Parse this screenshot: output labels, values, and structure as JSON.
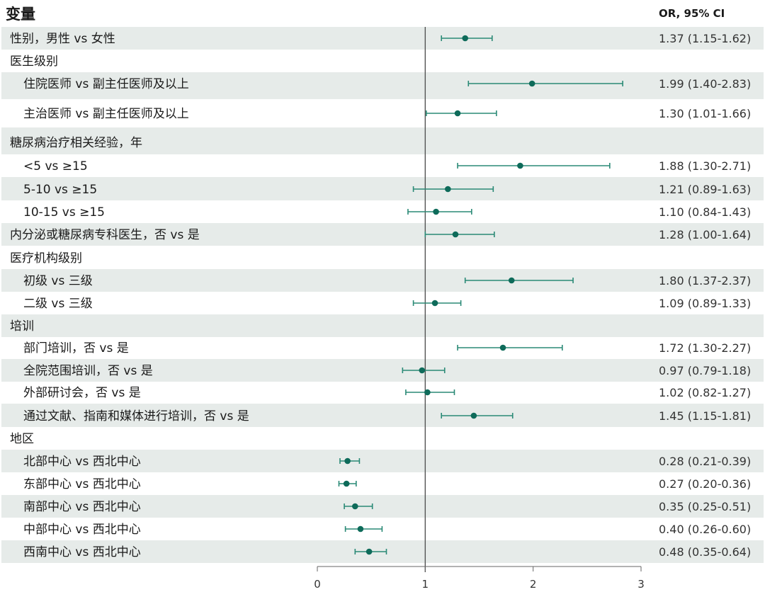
{
  "header": {
    "variable": "变量",
    "or_ci": "OR, 95% CI"
  },
  "chart_data": {
    "type": "forest",
    "xlim": [
      0,
      3
    ],
    "x_ticks": [
      0,
      1,
      2,
      3
    ],
    "x_tick_labels": [
      "0",
      "1",
      "2",
      "3"
    ],
    "reference_line": 1,
    "point_color": "#0e6b5a",
    "ci_color": "#2a8a76",
    "band_color": "#e6ebe9",
    "rows": [
      {
        "label": "性别，男性 vs 女性",
        "indent": 0,
        "or": 1.37,
        "lo": 1.15,
        "hi": 1.62,
        "text": "1.37 (1.15-1.62)"
      },
      {
        "label": "医生级别",
        "indent": 0,
        "header": true
      },
      {
        "label": "住院医师 vs 副主任医师及以上",
        "indent": 1,
        "or": 1.99,
        "lo": 1.4,
        "hi": 2.83,
        "text": "1.99 (1.40-2.83)"
      },
      {
        "label": "主治医师 vs 副主任医师及以上",
        "indent": 1,
        "or": 1.3,
        "lo": 1.01,
        "hi": 1.66,
        "text": "1.30 (1.01-1.66)"
      },
      {
        "label": "糖尿病治疗相关经验，年",
        "indent": 0,
        "header": true
      },
      {
        "label": "<5 vs ≥15",
        "indent": 1,
        "or": 1.88,
        "lo": 1.3,
        "hi": 2.71,
        "text": "1.88 (1.30-2.71)"
      },
      {
        "label": "5-10 vs ≥15",
        "indent": 1,
        "or": 1.21,
        "lo": 0.89,
        "hi": 1.63,
        "text": "1.21 (0.89-1.63)"
      },
      {
        "label": "10-15 vs ≥15",
        "indent": 1,
        "or": 1.1,
        "lo": 0.84,
        "hi": 1.43,
        "text": "1.10 (0.84-1.43)"
      },
      {
        "label": "内分泌或糖尿病专科医生，否 vs 是",
        "indent": 0,
        "or": 1.28,
        "lo": 1.0,
        "hi": 1.64,
        "text": "1.28 (1.00-1.64)"
      },
      {
        "label": "医疗机构级别",
        "indent": 0,
        "header": true
      },
      {
        "label": "初级 vs 三级",
        "indent": 1,
        "or": 1.8,
        "lo": 1.37,
        "hi": 2.37,
        "text": "1.80 (1.37-2.37)"
      },
      {
        "label": "二级 vs 三级",
        "indent": 1,
        "or": 1.09,
        "lo": 0.89,
        "hi": 1.33,
        "text": "1.09 (0.89-1.33)"
      },
      {
        "label": "培训",
        "indent": 0,
        "header": true
      },
      {
        "label": "部门培训，否 vs 是",
        "indent": 1,
        "or": 1.72,
        "lo": 1.3,
        "hi": 2.27,
        "text": "1.72 (1.30-2.27)"
      },
      {
        "label": "全院范围培训，否 vs 是",
        "indent": 1,
        "or": 0.97,
        "lo": 0.79,
        "hi": 1.18,
        "text": "0.97 (0.79-1.18)"
      },
      {
        "label": "外部研讨会，否 vs 是",
        "indent": 1,
        "or": 1.02,
        "lo": 0.82,
        "hi": 1.27,
        "text": "1.02 (0.82-1.27)"
      },
      {
        "label": "通过文献、指南和媒体进行培训，否 vs 是",
        "indent": 1,
        "or": 1.45,
        "lo": 1.15,
        "hi": 1.81,
        "text": "1.45 (1.15-1.81)"
      },
      {
        "label": "地区",
        "indent": 0,
        "header": true
      },
      {
        "label": "北部中心 vs 西北中心",
        "indent": 1,
        "or": 0.28,
        "lo": 0.21,
        "hi": 0.39,
        "text": "0.28 (0.21-0.39)"
      },
      {
        "label": "东部中心 vs 西北中心",
        "indent": 1,
        "or": 0.27,
        "lo": 0.2,
        "hi": 0.36,
        "text": "0.27 (0.20-0.36)"
      },
      {
        "label": "南部中心 vs 西北中心",
        "indent": 1,
        "or": 0.35,
        "lo": 0.25,
        "hi": 0.51,
        "text": "0.35 (0.25-0.51)"
      },
      {
        "label": "中部中心 vs 西北中心",
        "indent": 1,
        "or": 0.4,
        "lo": 0.26,
        "hi": 0.6,
        "text": "0.40 (0.26-0.60)"
      },
      {
        "label": "西南中心 vs 西北中心",
        "indent": 1,
        "or": 0.48,
        "lo": 0.35,
        "hi": 0.64,
        "text": "0.48 (0.35-0.64)"
      }
    ]
  }
}
